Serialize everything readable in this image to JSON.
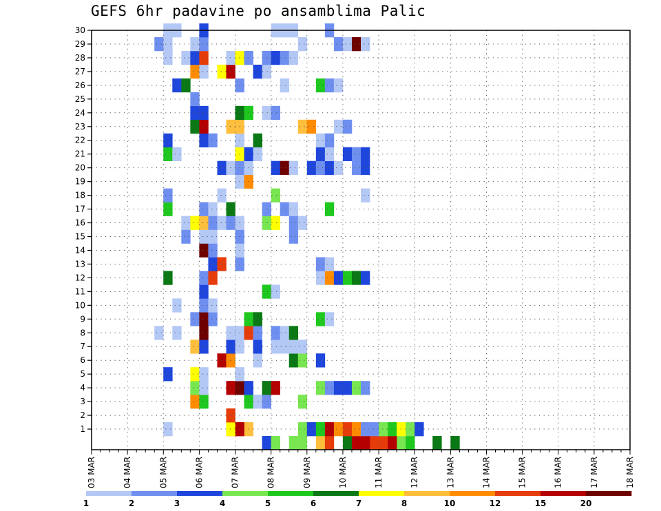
{
  "chart_data": {
    "type": "heatmap",
    "title": "GEFS 6hr padavine po ansamblima Palic",
    "xlabel": "",
    "ylabel": "",
    "x_tick_labels": [
      "03 MAR",
      "04 MAR",
      "05 MAR",
      "06 MAR",
      "07 MAR",
      "08 MAR",
      "09 MAR",
      "10 MAR",
      "11 MAR",
      "12 MAR",
      "13 MAR",
      "14 MAR",
      "15 MAR",
      "16 MAR",
      "17 MAR",
      "18 MAR"
    ],
    "y_tick_labels": [
      "1",
      "2",
      "3",
      "4",
      "5",
      "6",
      "7",
      "8",
      "9",
      "10",
      "11",
      "12",
      "13",
      "14",
      "15",
      "16",
      "17",
      "18",
      "19",
      "20",
      "21",
      "22",
      "23",
      "24",
      "25",
      "26",
      "27",
      "28",
      "29",
      "30"
    ],
    "x_range": [
      0,
      60
    ],
    "y_range": [
      0,
      30
    ],
    "time_step_hours": 6,
    "grid": true,
    "legend": {
      "placement": "bottom",
      "labels": [
        "1",
        "2",
        "3",
        "4",
        "5",
        "6",
        "7",
        "8",
        "10",
        "12",
        "15",
        "20"
      ],
      "colors": [
        "#b4c8f5",
        "#6f8ff0",
        "#1e46dc",
        "#78e650",
        "#1ec81e",
        "#0a7814",
        "#ffff00",
        "#ffbe3c",
        "#ff8c00",
        "#e63c0a",
        "#b40000",
        "#6e0000"
      ]
    },
    "cells": [
      [
        31,
        0,
        3
      ],
      [
        19,
        0,
        3
      ],
      [
        20,
        0,
        4
      ],
      [
        22,
        0,
        4
      ],
      [
        23,
        0,
        4
      ],
      [
        34,
        0,
        4
      ],
      [
        35,
        0,
        5
      ],
      [
        28,
        0,
        6
      ],
      [
        38,
        0,
        6
      ],
      [
        40,
        0,
        6
      ],
      [
        25,
        0,
        8
      ],
      [
        26,
        0,
        10
      ],
      [
        31,
        0,
        10
      ],
      [
        32,
        0,
        10
      ],
      [
        33,
        0,
        11
      ],
      [
        29,
        0,
        11
      ],
      [
        30,
        0,
        11
      ],
      [
        8,
        1,
        1
      ],
      [
        16,
        1,
        9
      ],
      [
        17,
        1,
        8
      ],
      [
        15,
        1,
        10
      ],
      [
        16,
        1,
        11
      ],
      [
        15,
        1,
        7
      ],
      [
        23,
        1,
        4
      ],
      [
        24,
        1,
        3
      ],
      [
        25,
        1,
        5
      ],
      [
        26,
        1,
        11
      ],
      [
        27,
        1,
        9
      ],
      [
        28,
        1,
        10
      ],
      [
        29,
        1,
        9
      ],
      [
        30,
        1,
        2
      ],
      [
        31,
        1,
        2
      ],
      [
        32,
        1,
        4
      ],
      [
        33,
        1,
        5
      ],
      [
        34,
        1,
        7
      ],
      [
        35,
        1,
        4
      ],
      [
        36,
        1,
        3
      ],
      [
        15,
        2,
        10
      ],
      [
        11,
        3,
        9
      ],
      [
        12,
        3,
        5
      ],
      [
        17,
        3,
        5
      ],
      [
        17,
        4,
        1
      ],
      [
        18,
        3,
        1
      ],
      [
        19,
        3,
        2
      ],
      [
        19,
        4,
        1
      ],
      [
        23,
        3,
        4
      ],
      [
        11,
        4,
        4
      ],
      [
        12,
        4,
        1
      ],
      [
        15,
        4,
        11
      ],
      [
        16,
        4,
        12
      ],
      [
        17,
        4,
        3
      ],
      [
        19,
        4,
        6
      ],
      [
        20,
        4,
        11
      ],
      [
        25,
        4,
        4
      ],
      [
        26,
        4,
        2
      ],
      [
        27,
        4,
        3
      ],
      [
        28,
        4,
        3
      ],
      [
        29,
        4,
        4
      ],
      [
        30,
        4,
        2
      ],
      [
        8,
        5,
        3
      ],
      [
        11,
        5,
        7
      ],
      [
        12,
        5,
        1
      ],
      [
        16,
        5,
        1
      ],
      [
        14,
        6,
        11
      ],
      [
        15,
        6,
        9
      ],
      [
        18,
        6,
        1
      ],
      [
        22,
        6,
        6
      ],
      [
        23,
        6,
        4
      ],
      [
        25,
        6,
        3
      ],
      [
        11,
        7,
        8
      ],
      [
        12,
        7,
        3
      ],
      [
        15,
        7,
        3
      ],
      [
        16,
        7,
        1
      ],
      [
        18,
        7,
        3
      ],
      [
        20,
        7,
        1
      ],
      [
        21,
        7,
        1
      ],
      [
        22,
        7,
        1
      ],
      [
        23,
        7,
        1
      ],
      [
        7,
        8,
        1
      ],
      [
        9,
        8,
        1
      ],
      [
        12,
        8,
        12
      ],
      [
        15,
        8,
        1
      ],
      [
        16,
        8,
        1
      ],
      [
        17,
        8,
        10
      ],
      [
        18,
        8,
        2
      ],
      [
        20,
        8,
        2
      ],
      [
        21,
        8,
        1
      ],
      [
        22,
        8,
        6
      ],
      [
        11,
        9,
        2
      ],
      [
        12,
        9,
        12
      ],
      [
        13,
        9,
        2
      ],
      [
        17,
        9,
        5
      ],
      [
        18,
        9,
        6
      ],
      [
        25,
        9,
        5
      ],
      [
        26,
        9,
        1
      ],
      [
        9,
        10,
        1
      ],
      [
        12,
        10,
        2
      ],
      [
        13,
        10,
        1
      ],
      [
        12,
        11,
        3
      ],
      [
        19,
        11,
        5
      ],
      [
        20,
        11,
        1
      ],
      [
        8,
        12,
        6
      ],
      [
        12,
        12,
        2
      ],
      [
        13,
        12,
        10
      ],
      [
        25,
        12,
        1
      ],
      [
        26,
        12,
        9
      ],
      [
        27,
        12,
        3
      ],
      [
        28,
        12,
        5
      ],
      [
        29,
        12,
        6
      ],
      [
        30,
        12,
        3
      ],
      [
        13,
        13,
        3
      ],
      [
        14,
        13,
        10
      ],
      [
        16,
        13,
        2
      ],
      [
        25,
        13,
        2
      ],
      [
        26,
        13,
        1
      ],
      [
        12,
        14,
        12
      ],
      [
        13,
        14,
        2
      ],
      [
        16,
        14,
        1
      ],
      [
        10,
        15,
        2
      ],
      [
        12,
        15,
        1
      ],
      [
        13,
        15,
        1
      ],
      [
        16,
        15,
        2
      ],
      [
        22,
        15,
        2
      ],
      [
        10,
        16,
        1
      ],
      [
        11,
        16,
        7
      ],
      [
        12,
        16,
        8
      ],
      [
        13,
        16,
        2
      ],
      [
        14,
        16,
        1
      ],
      [
        15,
        16,
        2
      ],
      [
        16,
        16,
        1
      ],
      [
        19,
        16,
        4
      ],
      [
        20,
        16,
        7
      ],
      [
        22,
        16,
        2
      ],
      [
        23,
        16,
        1
      ],
      [
        8,
        17,
        5
      ],
      [
        12,
        17,
        2
      ],
      [
        13,
        17,
        1
      ],
      [
        15,
        17,
        6
      ],
      [
        19,
        17,
        2
      ],
      [
        21,
        17,
        2
      ],
      [
        22,
        17,
        1
      ],
      [
        26,
        17,
        5
      ],
      [
        8,
        18,
        2
      ],
      [
        14,
        18,
        1
      ],
      [
        20,
        18,
        4
      ],
      [
        30,
        18,
        1
      ],
      [
        16,
        19,
        1
      ],
      [
        17,
        19,
        9
      ],
      [
        14,
        20,
        3
      ],
      [
        15,
        20,
        1
      ],
      [
        16,
        20,
        2
      ],
      [
        17,
        20,
        1
      ],
      [
        20,
        20,
        3
      ],
      [
        21,
        20,
        12
      ],
      [
        22,
        20,
        1
      ],
      [
        24,
        20,
        3
      ],
      [
        25,
        20,
        2
      ],
      [
        26,
        20,
        3
      ],
      [
        27,
        20,
        1
      ],
      [
        29,
        20,
        2
      ],
      [
        30,
        20,
        3
      ],
      [
        8,
        21,
        5
      ],
      [
        9,
        21,
        1
      ],
      [
        16,
        21,
        7
      ],
      [
        17,
        21,
        3
      ],
      [
        18,
        21,
        1
      ],
      [
        25,
        21,
        3
      ],
      [
        26,
        21,
        1
      ],
      [
        28,
        21,
        3
      ],
      [
        29,
        21,
        2
      ],
      [
        30,
        21,
        3
      ],
      [
        8,
        22,
        3
      ],
      [
        12,
        22,
        3
      ],
      [
        13,
        22,
        2
      ],
      [
        16,
        22,
        1
      ],
      [
        18,
        22,
        6
      ],
      [
        25,
        22,
        1
      ],
      [
        26,
        22,
        2
      ],
      [
        11,
        23,
        6
      ],
      [
        12,
        23,
        11
      ],
      [
        15,
        23,
        8
      ],
      [
        16,
        23,
        8
      ],
      [
        23,
        23,
        8
      ],
      [
        24,
        23,
        9
      ],
      [
        27,
        23,
        1
      ],
      [
        28,
        23,
        2
      ],
      [
        11,
        24,
        3
      ],
      [
        12,
        24,
        3
      ],
      [
        16,
        24,
        6
      ],
      [
        17,
        24,
        5
      ],
      [
        19,
        24,
        1
      ],
      [
        20,
        24,
        2
      ],
      [
        11,
        25,
        2
      ],
      [
        9,
        26,
        3
      ],
      [
        10,
        26,
        6
      ],
      [
        16,
        26,
        2
      ],
      [
        21,
        26,
        1
      ],
      [
        25,
        26,
        5
      ],
      [
        26,
        26,
        2
      ],
      [
        27,
        26,
        1
      ],
      [
        11,
        27,
        9
      ],
      [
        12,
        27,
        1
      ],
      [
        14,
        27,
        7
      ],
      [
        15,
        27,
        11
      ],
      [
        18,
        27,
        3
      ],
      [
        19,
        27,
        1
      ],
      [
        8,
        28,
        1
      ],
      [
        10,
        28,
        1
      ],
      [
        11,
        28,
        3
      ],
      [
        12,
        28,
        10
      ],
      [
        15,
        28,
        1
      ],
      [
        16,
        28,
        7
      ],
      [
        17,
        28,
        2
      ],
      [
        19,
        28,
        2
      ],
      [
        20,
        28,
        3
      ],
      [
        21,
        28,
        2
      ],
      [
        22,
        28,
        1
      ],
      [
        7,
        29,
        2
      ],
      [
        8,
        29,
        1
      ],
      [
        11,
        29,
        1
      ],
      [
        12,
        29,
        2
      ],
      [
        23,
        29,
        1
      ],
      [
        27,
        29,
        2
      ],
      [
        28,
        29,
        1
      ],
      [
        29,
        29,
        12
      ],
      [
        30,
        29,
        1
      ],
      [
        8,
        30,
        1
      ],
      [
        9,
        30,
        1
      ],
      [
        12,
        30,
        3
      ],
      [
        20,
        30,
        1
      ],
      [
        21,
        30,
        1
      ],
      [
        22,
        30,
        1
      ],
      [
        26,
        30,
        2
      ]
    ]
  }
}
